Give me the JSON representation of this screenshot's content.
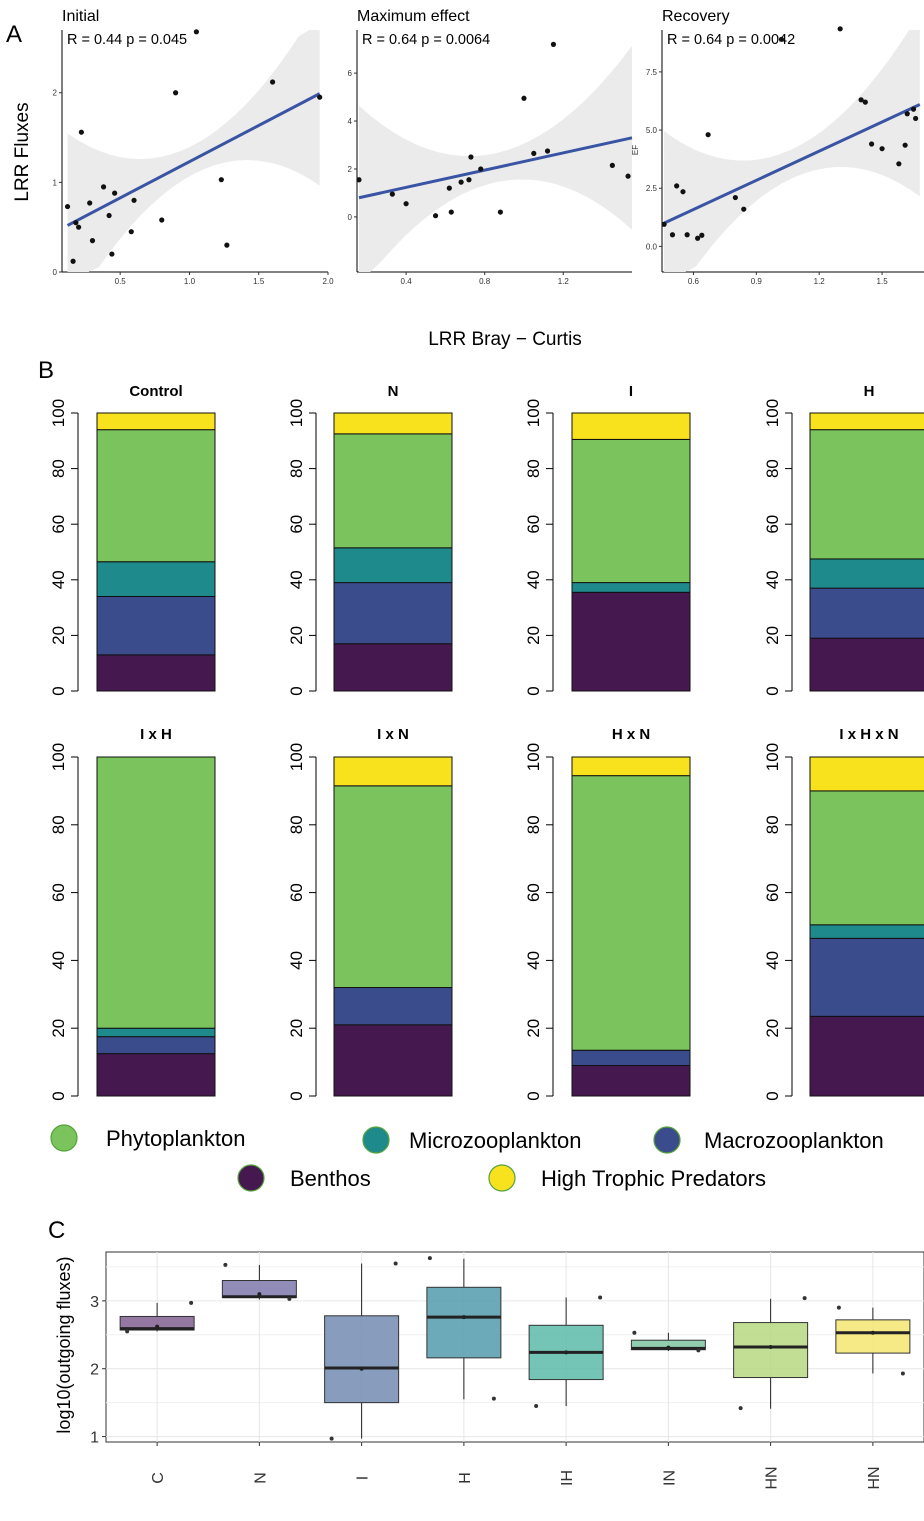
{
  "chart_data": [
    {
      "type": "scatter",
      "panel": "A",
      "title": "Initial",
      "stat": "R = 0.44  p = 0.045",
      "ylabel": "LRR Fluxes",
      "xlim": [
        0.08,
        2.0
      ],
      "ylim": [
        0,
        2.7
      ],
      "xticks": [
        "0.5",
        "1.0",
        "1.5",
        "2.0"
      ],
      "yticks": [
        "0",
        "1",
        "2"
      ],
      "x": [
        0.12,
        0.16,
        0.18,
        0.2,
        0.22,
        0.28,
        0.3,
        0.38,
        0.42,
        0.44,
        0.46,
        0.58,
        0.6,
        0.8,
        0.9,
        1.05,
        1.23,
        1.27,
        1.6,
        1.94
      ],
      "y": [
        0.73,
        0.12,
        0.55,
        0.5,
        1.56,
        0.77,
        0.35,
        0.95,
        0.63,
        0.2,
        0.88,
        0.45,
        0.8,
        0.58,
        2.0,
        2.68,
        1.03,
        0.3,
        2.12,
        1.95
      ],
      "fit": {
        "x0": 0.12,
        "y0": 0.52,
        "x1": 1.94,
        "y1": 1.99
      }
    },
    {
      "type": "scatter",
      "panel": "A",
      "title": "Maximum effect",
      "stat": "R = 0.64  p = 0.0064",
      "ylabel": "",
      "xlim": [
        0.15,
        1.55
      ],
      "ylim": [
        -2.3,
        7.8
      ],
      "xticks": [
        "0.4",
        "0.8",
        "1.2"
      ],
      "yticks": [
        "0",
        "2",
        "4",
        "6"
      ],
      "x": [
        0.16,
        0.33,
        0.4,
        0.55,
        0.62,
        0.63,
        0.68,
        0.72,
        0.73,
        0.78,
        0.88,
        1.0,
        1.05,
        1.12,
        1.15,
        1.45,
        1.53
      ],
      "y": [
        1.55,
        0.95,
        0.55,
        0.05,
        1.2,
        0.2,
        1.45,
        1.55,
        2.5,
        2.0,
        0.2,
        4.95,
        2.65,
        2.75,
        7.2,
        2.15,
        1.7
      ],
      "fit": {
        "x0": 0.16,
        "y0": 0.8,
        "x1": 1.55,
        "y1": 3.3
      }
    },
    {
      "type": "scatter",
      "panel": "A",
      "title": "Recovery",
      "stat": "R = 0.64  p = 0.0042",
      "ylabel": "EF",
      "xlim": [
        0.45,
        1.7
      ],
      "ylim": [
        -1.1,
        9.3
      ],
      "xticks": [
        "0.6",
        "0.9",
        "1.2",
        "1.5"
      ],
      "yticks": [
        "0.0",
        "2.5",
        "5.0",
        "7.5"
      ],
      "x": [
        0.46,
        0.5,
        0.52,
        0.55,
        0.57,
        0.62,
        0.64,
        0.67,
        0.8,
        0.84,
        1.02,
        1.3,
        1.4,
        1.42,
        1.45,
        1.5,
        1.58,
        1.61,
        1.62,
        1.65,
        1.66
      ],
      "y": [
        0.95,
        0.5,
        2.6,
        2.35,
        0.5,
        0.35,
        0.48,
        4.8,
        2.1,
        1.6,
        8.9,
        9.35,
        6.3,
        6.2,
        4.4,
        4.2,
        3.55,
        4.35,
        5.7,
        5.9,
        5.5
      ],
      "fit": {
        "x0": 0.46,
        "y0": 1.0,
        "x1": 1.68,
        "y1": 6.1
      }
    },
    {
      "type": "bar",
      "panel": "B",
      "stacked": true,
      "ylim": [
        0,
        100
      ],
      "yticks": [
        "0",
        "20",
        "40",
        "60",
        "80",
        "100"
      ],
      "series_order": [
        "Benthos",
        "Macrozooplankton",
        "Microzooplankton",
        "Phytoplankton",
        "High Trophic Predators"
      ],
      "panels": [
        {
          "title": "Control",
          "values": [
            13,
            21,
            12.5,
            47.5,
            6
          ]
        },
        {
          "title": "N",
          "values": [
            17,
            22,
            12.5,
            41,
            7.5
          ]
        },
        {
          "title": "I",
          "values": [
            35.5,
            0,
            3.5,
            51.5,
            9.5
          ]
        },
        {
          "title": "H",
          "values": [
            19,
            18,
            10.5,
            46.5,
            6
          ]
        },
        {
          "title": "I x H",
          "values": [
            12.5,
            5,
            2.5,
            80,
            0
          ]
        },
        {
          "title": "I x N",
          "values": [
            21,
            11,
            0,
            59.5,
            8.5
          ]
        },
        {
          "title": "H x N",
          "values": [
            9,
            4.5,
            0,
            81,
            5.5
          ]
        },
        {
          "title": "I x H x N",
          "values": [
            23.5,
            23,
            4,
            39.5,
            10
          ]
        }
      ]
    },
    {
      "type": "box",
      "panel": "C",
      "ylabel": "log10(outgoing fluxes)",
      "ylim": [
        0.92,
        3.72
      ],
      "yticks": [
        "1",
        "2",
        "3"
      ],
      "categories": [
        "C",
        "N",
        "I",
        "H",
        "IH",
        "IN",
        "HN",
        "HN"
      ],
      "boxes": [
        {
          "q1": 2.57,
          "median": 2.59,
          "q3": 2.77,
          "min": 2.55,
          "max": 2.97,
          "mean": 2.62,
          "color": "#7d5a8e",
          "outliers": [
            2.97,
            2.55
          ]
        },
        {
          "q1": 3.05,
          "median": 3.06,
          "q3": 3.3,
          "min": 3.02,
          "max": 3.53,
          "mean": 3.1,
          "color": "#7a74a8",
          "outliers": [
            3.53,
            3.03
          ]
        },
        {
          "q1": 1.5,
          "median": 2.01,
          "q3": 2.78,
          "min": 0.97,
          "max": 3.55,
          "mean": 2.0,
          "color": "#6e88b0",
          "outliers": [
            3.55,
            0.97
          ]
        },
        {
          "q1": 2.16,
          "median": 2.76,
          "q3": 3.2,
          "min": 1.55,
          "max": 3.62,
          "mean": 2.76,
          "color": "#4d97a9",
          "outliers": [
            3.63,
            1.56
          ]
        },
        {
          "q1": 1.84,
          "median": 2.24,
          "q3": 2.64,
          "min": 1.45,
          "max": 3.05,
          "mean": 2.24,
          "color": "#56b8a6",
          "outliers": [
            3.05,
            1.45
          ]
        },
        {
          "q1": 2.28,
          "median": 2.3,
          "q3": 2.42,
          "min": 2.26,
          "max": 2.53,
          "mean": 2.31,
          "color": "#78c39e",
          "outliers": [
            2.53,
            2.27
          ]
        },
        {
          "q1": 1.87,
          "median": 2.32,
          "q3": 2.68,
          "min": 1.41,
          "max": 3.03,
          "mean": 2.32,
          "color": "#b5d77d",
          "outliers": [
            3.04,
            1.42
          ]
        },
        {
          "q1": 2.23,
          "median": 2.53,
          "q3": 2.72,
          "min": 1.93,
          "max": 2.9,
          "mean": 2.53,
          "color": "#f4e56b",
          "outliers": [
            2.9,
            1.93
          ]
        }
      ]
    }
  ],
  "labels": {
    "panel_a": "A",
    "panel_b": "B",
    "panel_c": "C",
    "shared_xlabel": "LRR Bray − Curtis"
  },
  "legend": [
    {
      "name": "Phytoplankton",
      "color": "#7bc35c"
    },
    {
      "name": "Microzooplankton",
      "color": "#1e8a8c"
    },
    {
      "name": "Macrozooplankton",
      "color": "#3b4c8d"
    },
    {
      "name": "Benthos",
      "color": "#45194f"
    },
    {
      "name": "High Trophic Predators",
      "color": "#f8e21d"
    }
  ],
  "colors": {
    "fit_line": "#3a54a4",
    "ribbon": "#ebebeb",
    "grid": "#e6e6e6"
  }
}
